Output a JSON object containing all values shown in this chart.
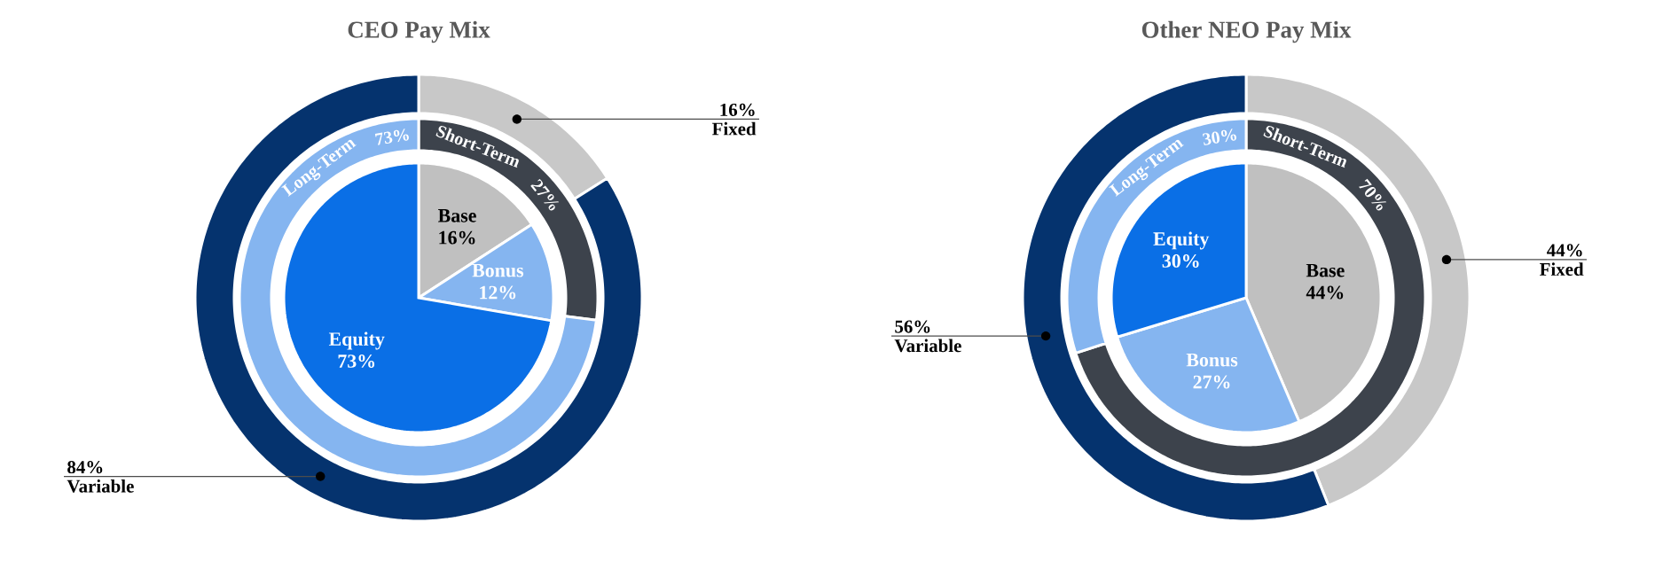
{
  "chart_data": [
    {
      "type": "pie",
      "title": "CEO Pay Mix",
      "categories": [
        "Base",
        "Bonus",
        "Equity"
      ],
      "values": [
        16,
        12,
        73
      ],
      "value_labels": [
        "16%",
        "12%",
        "73%"
      ],
      "colors": [
        "#c0c0c0",
        "#85b5f0",
        "#0a6fe6"
      ]
    },
    {
      "type": "donut",
      "categories": [
        "Short-Term",
        "Long-Term"
      ],
      "values": [
        27,
        73
      ],
      "value_labels": [
        "27%",
        "73%"
      ],
      "colors": [
        "#3d434c",
        "#85b5f0"
      ]
    },
    {
      "type": "donut",
      "categories": [
        "Fixed",
        "Variable"
      ],
      "values": [
        16,
        84
      ],
      "value_labels": [
        "16%",
        "84%"
      ],
      "colors": [
        "#c8c8c8",
        "#05336e"
      ]
    },
    {
      "type": "pie",
      "title": "Other NEO Pay Mix",
      "categories": [
        "Base",
        "Bonus",
        "Equity"
      ],
      "values": [
        44,
        27,
        30
      ],
      "value_labels": [
        "44%",
        "27%",
        "30%"
      ],
      "colors": [
        "#c0c0c0",
        "#85b5f0",
        "#0a6fe6"
      ]
    },
    {
      "type": "donut",
      "categories": [
        "Short-Term",
        "Long-Term"
      ],
      "values": [
        70,
        30
      ],
      "value_labels": [
        "70%",
        "30%"
      ],
      "colors": [
        "#3d434c",
        "#85b5f0"
      ]
    },
    {
      "type": "donut",
      "categories": [
        "Fixed",
        "Variable"
      ],
      "values": [
        44,
        56
      ],
      "value_labels": [
        "44%",
        "56%"
      ],
      "colors": [
        "#c8c8c8",
        "#05336e"
      ]
    }
  ]
}
